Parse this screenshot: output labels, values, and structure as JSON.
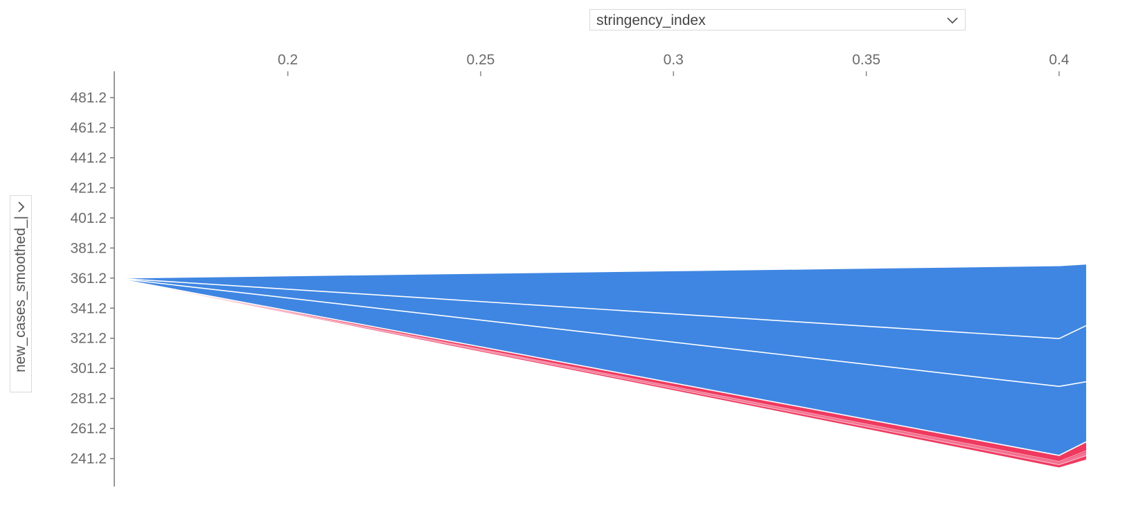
{
  "controls": {
    "x_select": {
      "value": "stringency_index",
      "icon": "chevron-down-icon"
    },
    "y_select": {
      "value": "new_cases_smoothed_|",
      "icon": "chevron-right-icon"
    }
  },
  "chart_data": {
    "type": "area",
    "title": "",
    "xlabel": "stringency_index",
    "ylabel": "new_cases_smoothed_|",
    "x_ticks": [
      0.2,
      0.25,
      0.3,
      0.35,
      0.4
    ],
    "y_ticks": [
      481.2,
      461.2,
      441.2,
      421.2,
      401.2,
      381.2,
      361.2,
      341.2,
      321.2,
      301.2,
      281.2,
      261.2,
      241.2
    ],
    "xlim": [
      0.155,
      0.407
    ],
    "ylim": [
      222.6,
      498.7
    ],
    "grid": false,
    "colors": {
      "positive": "#3f86e2",
      "negative": "#f0395f",
      "negative_light": "#f4a6bd",
      "separator": "#ffffff"
    },
    "x": [
      0.155,
      0.4
    ],
    "positive_area": {
      "upper": [
        361.2,
        369.5
      ],
      "lower": [
        361.2,
        243.3
      ]
    },
    "positive_boundaries": [
      {
        "values": [
          361.2,
          321.0
        ]
      },
      {
        "values": [
          361.2,
          289.2
        ]
      }
    ],
    "negative_area": {
      "upper": [
        361.2,
        243.3
      ],
      "lower": [
        361.2,
        235.3
      ]
    },
    "continuation_beyond_view": {
      "positive_upper": 371.5,
      "positive_lower": 260.0,
      "boundary_1": 337.0,
      "boundary_2": 295.0,
      "negative_lower": 245.0
    },
    "x_continuation": 0.413
  }
}
